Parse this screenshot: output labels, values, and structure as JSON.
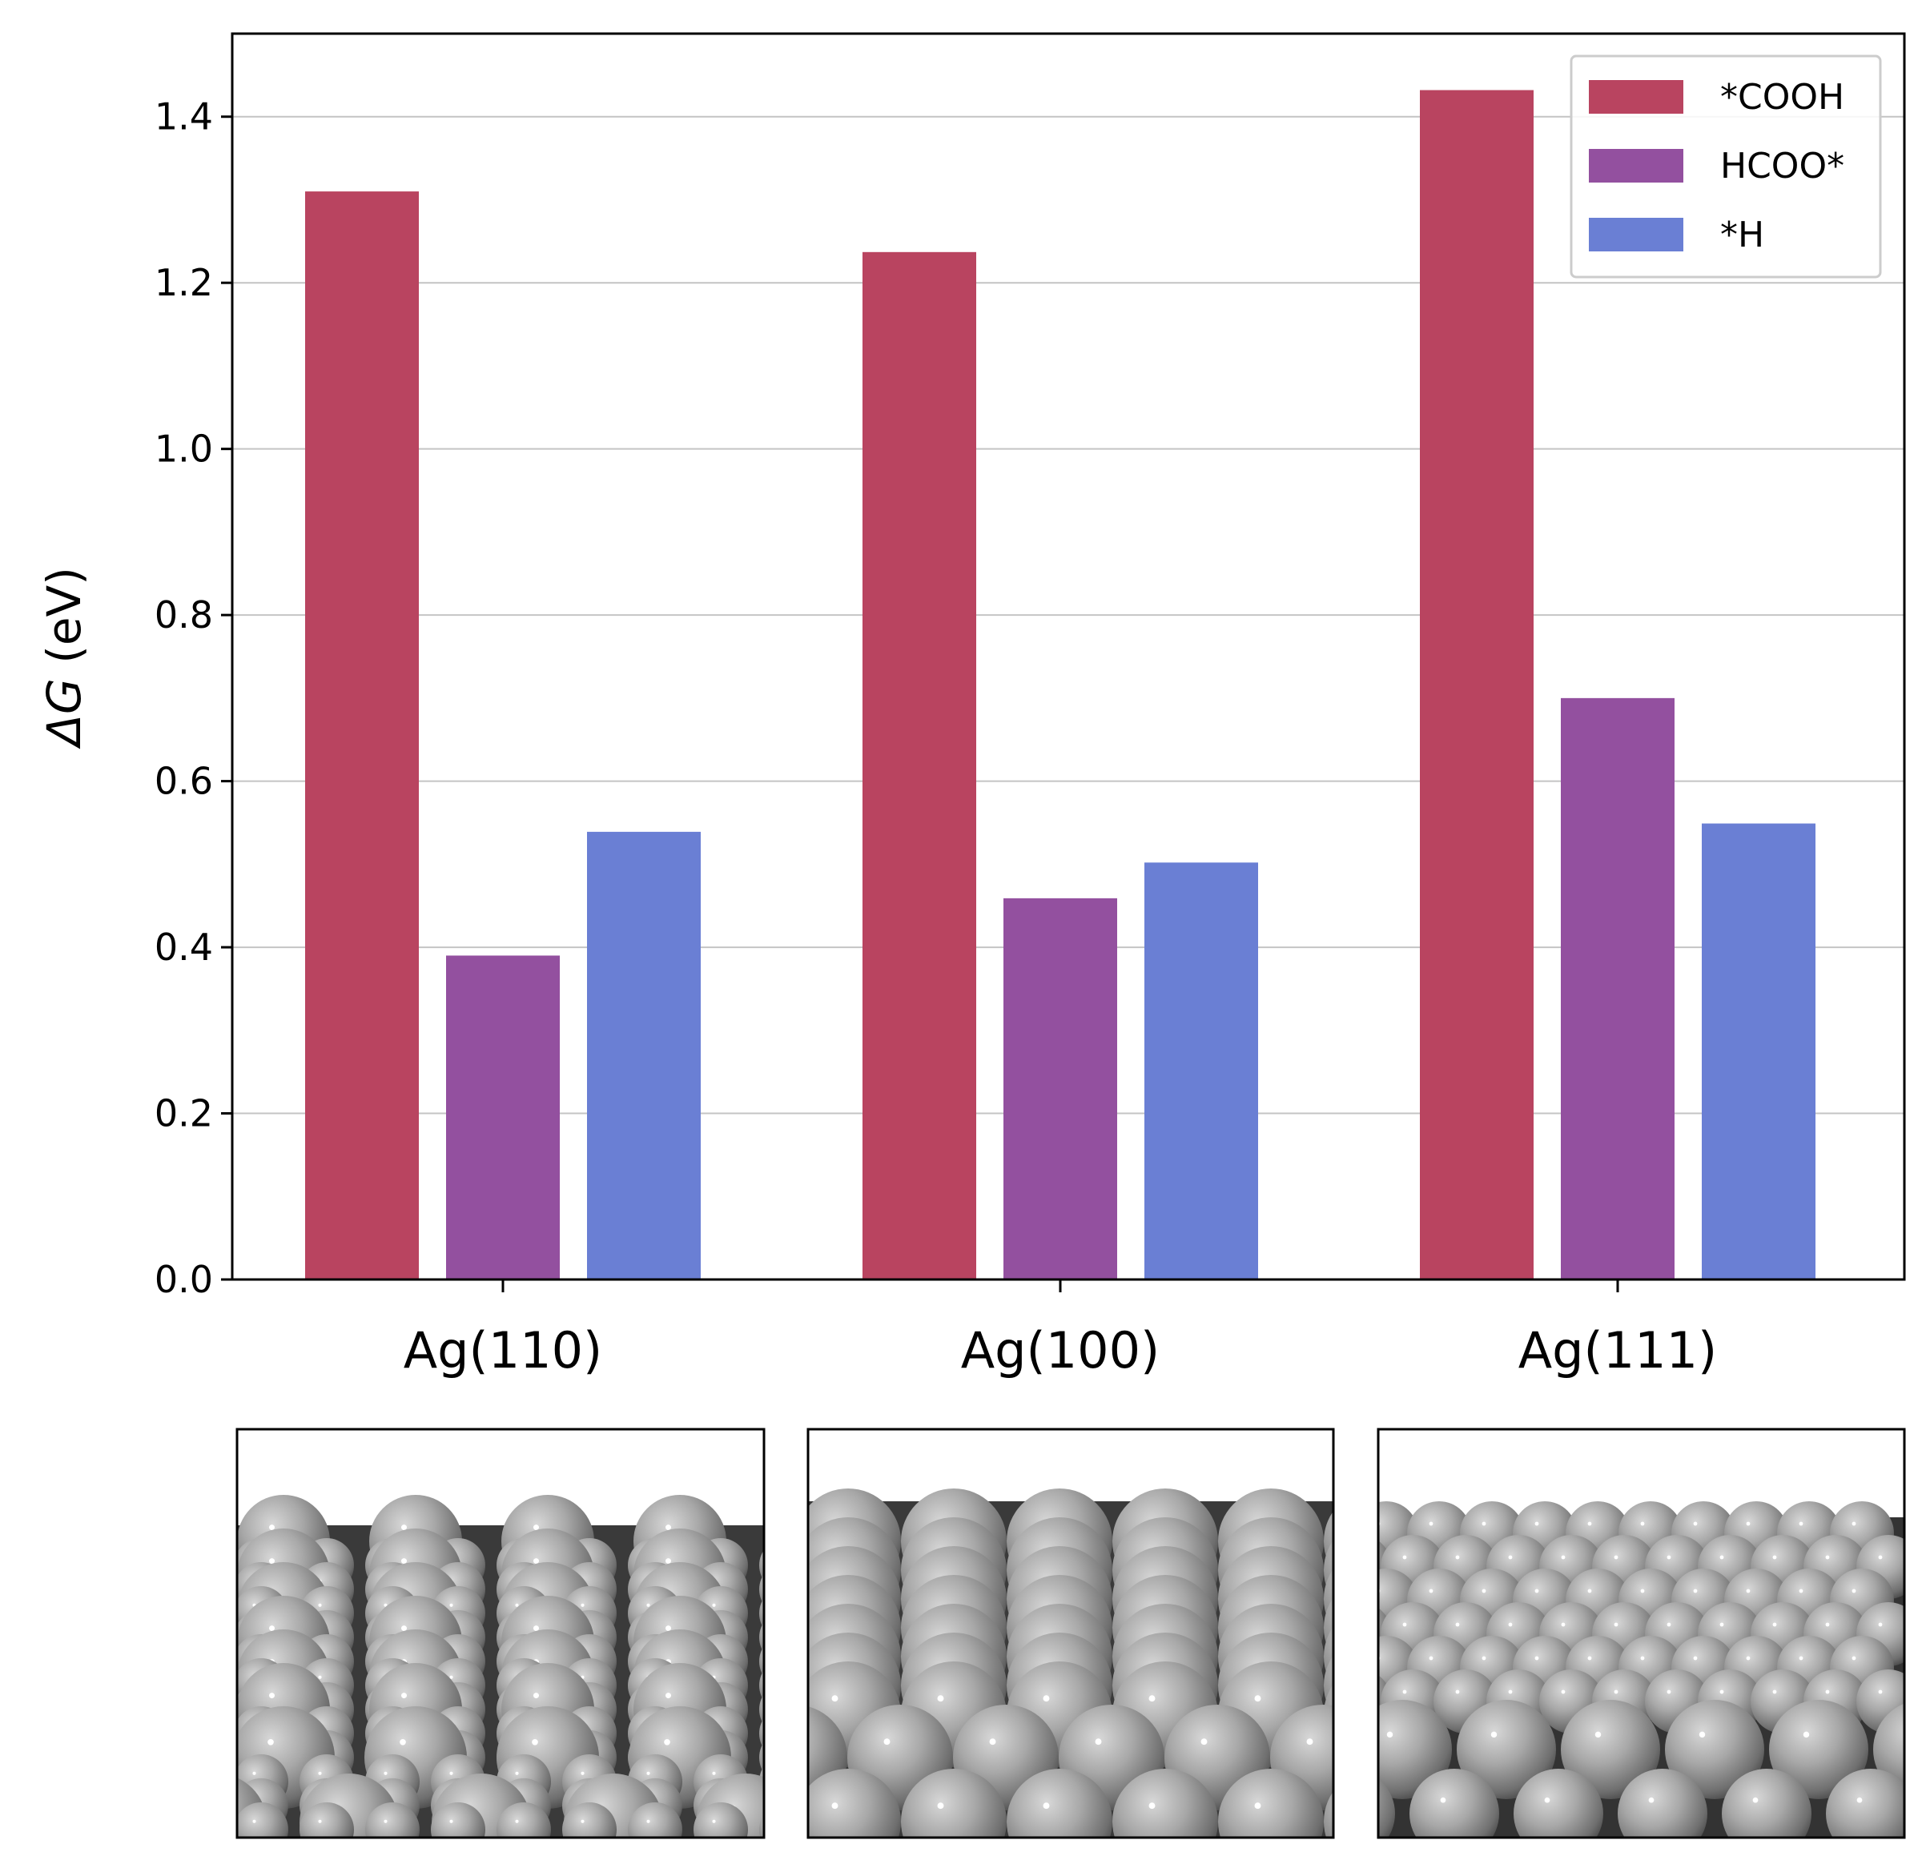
{
  "chart_data": {
    "type": "bar",
    "categories": [
      "Ag(110)",
      "Ag(100)",
      "Ag(111)"
    ],
    "series": [
      {
        "name": "*COOH",
        "color": "#b94460",
        "values": [
          1.31,
          1.237,
          1.432
        ]
      },
      {
        "name": "HCOO*",
        "color": "#93509f",
        "values": [
          0.39,
          0.459,
          0.7
        ]
      },
      {
        "name": "*H",
        "color": "#6a7fd4",
        "values": [
          0.539,
          0.502,
          0.549
        ]
      }
    ],
    "ylabel_symbol": "ΔG",
    "ylabel_unit": " (eV)",
    "ylim": [
      0,
      1.5
    ],
    "yticks": [
      "0.0",
      "0.2",
      "0.4",
      "0.6",
      "0.8",
      "1.0",
      "1.2",
      "1.4"
    ],
    "grid": "horizontal",
    "legend": "top-right"
  },
  "panels": [
    {
      "surface": "Ag(110)",
      "style": "row"
    },
    {
      "surface": "Ag(100)",
      "style": "square"
    },
    {
      "surface": "Ag(111)",
      "style": "hex"
    }
  ]
}
